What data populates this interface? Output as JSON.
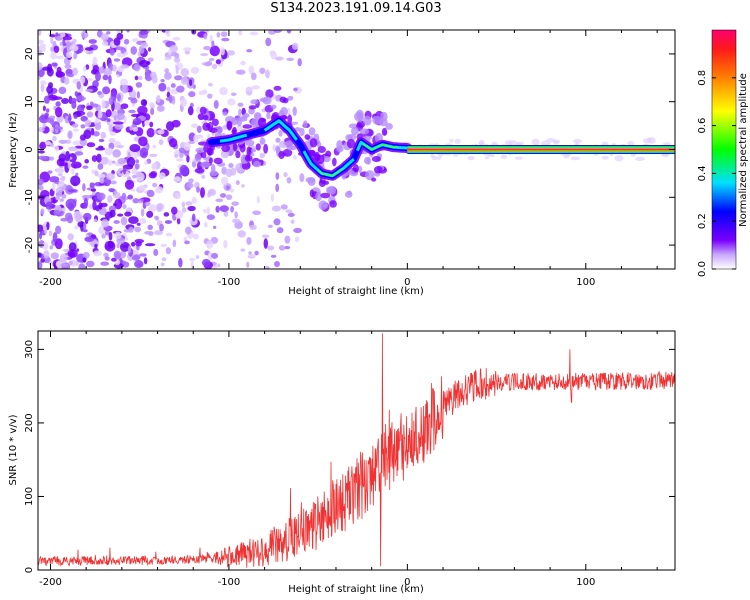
{
  "title": "S134.2023.191.09.14.G03",
  "chart_data": [
    {
      "type": "heatmap",
      "xlabel": "Height of straight line (km)",
      "ylabel": "Frequency (Hz)",
      "xlim": [
        -207,
        150
      ],
      "ylim": [
        -25,
        25
      ],
      "x_ticks": [
        -200,
        -100,
        0,
        100
      ],
      "y_ticks": [
        -20,
        -10,
        0,
        10,
        20
      ],
      "colorbar": {
        "label": "Normalized spectral amplitude",
        "range": [
          0,
          1
        ],
        "ticks": [
          "0.0",
          "0.2",
          "0.4",
          "0.6",
          "0.8"
        ],
        "tick_values": [
          0,
          0.2,
          0.4,
          0.6,
          0.8
        ],
        "colormap": [
          "#ffffff",
          "#7a00ff",
          "#0000ff",
          "#00e0ff",
          "#00ff00",
          "#ffff00",
          "#ff8000",
          "#ff0060"
        ]
      },
      "ridge": [
        {
          "x": -110,
          "y": 1.5
        },
        {
          "x": -100,
          "y": 2
        },
        {
          "x": -90,
          "y": 3
        },
        {
          "x": -80,
          "y": 4
        },
        {
          "x": -72,
          "y": 6
        },
        {
          "x": -66,
          "y": 4
        },
        {
          "x": -60,
          "y": 1
        },
        {
          "x": -54,
          "y": -3
        },
        {
          "x": -48,
          "y": -5
        },
        {
          "x": -42,
          "y": -5.5
        },
        {
          "x": -36,
          "y": -4
        },
        {
          "x": -30,
          "y": -2
        },
        {
          "x": -26,
          "y": 1.5
        },
        {
          "x": -20,
          "y": 0
        },
        {
          "x": -14,
          "y": 1
        },
        {
          "x": -8,
          "y": 0.5
        },
        {
          "x": 0,
          "y": 0.3
        },
        {
          "x": 150,
          "y": 0
        }
      ],
      "carrier_line": {
        "x_start": 0,
        "x_end": 150,
        "y": 0
      }
    },
    {
      "type": "line",
      "xlabel": "Height of straight line (km)",
      "ylabel": "SNR (10 * v/v)",
      "xlim": [
        -207,
        150
      ],
      "ylim": [
        0,
        325
      ],
      "x_ticks": [
        -200,
        -100,
        0,
        100
      ],
      "y_ticks": [
        0,
        100,
        200,
        300
      ],
      "color": "#f03232",
      "envelope": [
        {
          "x": -207,
          "y": 12
        },
        {
          "x": -150,
          "y": 13
        },
        {
          "x": -120,
          "y": 14
        },
        {
          "x": -100,
          "y": 18
        },
        {
          "x": -90,
          "y": 22
        },
        {
          "x": -80,
          "y": 28
        },
        {
          "x": -70,
          "y": 38
        },
        {
          "x": -60,
          "y": 50
        },
        {
          "x": -50,
          "y": 65
        },
        {
          "x": -40,
          "y": 85
        },
        {
          "x": -30,
          "y": 105
        },
        {
          "x": -20,
          "y": 130
        },
        {
          "x": -10,
          "y": 150
        },
        {
          "x": 0,
          "y": 165
        },
        {
          "x": 10,
          "y": 190
        },
        {
          "x": 20,
          "y": 222
        },
        {
          "x": 30,
          "y": 242
        },
        {
          "x": 40,
          "y": 252
        },
        {
          "x": 60,
          "y": 256
        },
        {
          "x": 100,
          "y": 256
        },
        {
          "x": 150,
          "y": 258
        }
      ],
      "spikes": [
        {
          "x": -14,
          "y": 322
        },
        {
          "x": -15,
          "y": 5
        },
        {
          "x": 91,
          "y": 300
        },
        {
          "x": 92,
          "y": 228
        }
      ]
    }
  ]
}
